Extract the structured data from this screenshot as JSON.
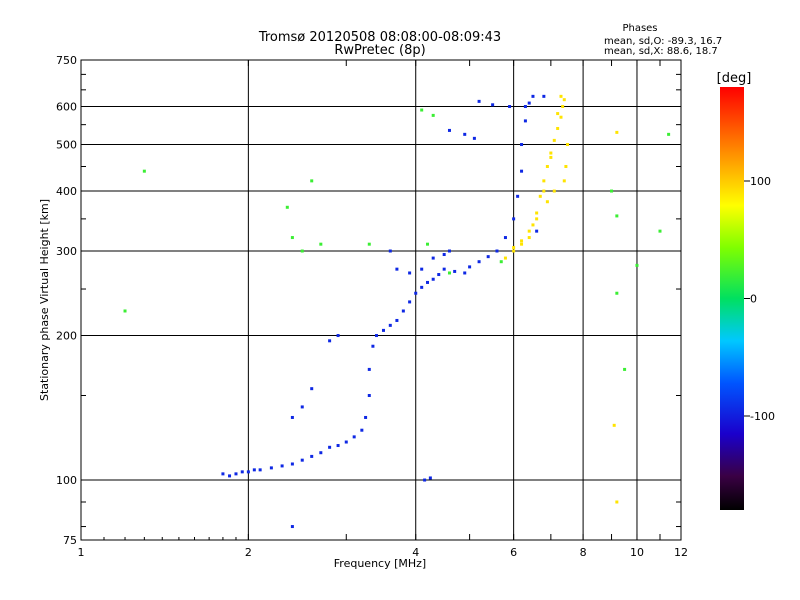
{
  "chart_data": {
    "type": "scatter",
    "title": "Tromsø 20120508 08:08:00-08:09:43",
    "subtitle": "RwPretec (8p)",
    "xlabel": "Frequency [MHz]",
    "ylabel": "Stationary phase Virtual Height [km]",
    "x_scale": "log",
    "y_scale": "log",
    "xlim": [
      1,
      12
    ],
    "ylim": [
      75,
      750
    ],
    "x_ticks": [
      "1",
      "2",
      "4",
      "6",
      "8",
      "10",
      "12"
    ],
    "y_ticks": [
      "75",
      "100",
      "200",
      "300",
      "400",
      "500",
      "600",
      "750"
    ],
    "grid": true,
    "stats": {
      "title": "Phases",
      "line_o": "mean, sd,O: -89.3, 16.7",
      "line_x": "mean, sd,X: 88.6, 18.7"
    },
    "colorbar": {
      "label": "[deg]",
      "range": [
        -180,
        180
      ],
      "ticks": [
        "100",
        "0",
        "-100"
      ]
    },
    "series": [
      {
        "trace": "O",
        "phase_deg": -95,
        "points": [
          [
            1.8,
            103
          ],
          [
            1.85,
            102
          ],
          [
            1.9,
            103
          ],
          [
            1.95,
            104
          ],
          [
            2.0,
            104
          ],
          [
            2.05,
            105
          ],
          [
            2.1,
            105
          ],
          [
            2.2,
            106
          ],
          [
            2.3,
            107
          ],
          [
            2.4,
            108
          ],
          [
            2.5,
            110
          ],
          [
            2.6,
            112
          ],
          [
            2.7,
            114
          ],
          [
            2.8,
            117
          ],
          [
            2.9,
            118
          ],
          [
            3.0,
            120
          ],
          [
            3.1,
            123
          ],
          [
            3.2,
            127
          ],
          [
            3.25,
            135
          ],
          [
            3.3,
            150
          ],
          [
            3.3,
            170
          ],
          [
            3.35,
            190
          ],
          [
            3.4,
            200
          ],
          [
            3.5,
            205
          ],
          [
            3.6,
            210
          ],
          [
            3.7,
            215
          ],
          [
            3.8,
            225
          ],
          [
            3.9,
            235
          ],
          [
            4.0,
            245
          ],
          [
            4.1,
            252
          ],
          [
            4.2,
            258
          ],
          [
            4.3,
            262
          ],
          [
            4.4,
            268
          ],
          [
            4.5,
            275
          ],
          [
            4.7,
            272
          ],
          [
            4.9,
            270
          ],
          [
            5.0,
            278
          ],
          [
            5.2,
            285
          ],
          [
            5.4,
            292
          ],
          [
            5.6,
            300
          ],
          [
            5.8,
            320
          ],
          [
            6.0,
            350
          ],
          [
            6.1,
            390
          ],
          [
            6.2,
            440
          ],
          [
            6.2,
            500
          ],
          [
            6.3,
            560
          ],
          [
            6.4,
            610
          ],
          [
            6.5,
            630
          ],
          [
            6.3,
            600
          ],
          [
            5.9,
            600
          ],
          [
            5.5,
            605
          ],
          [
            5.2,
            615
          ],
          [
            3.6,
            300
          ],
          [
            3.7,
            275
          ],
          [
            3.9,
            270
          ],
          [
            4.1,
            275
          ],
          [
            4.3,
            290
          ],
          [
            4.5,
            295
          ],
          [
            4.6,
            300
          ],
          [
            2.4,
            135
          ],
          [
            2.5,
            142
          ],
          [
            2.6,
            155
          ],
          [
            2.8,
            195
          ],
          [
            2.9,
            200
          ],
          [
            4.15,
            100
          ],
          [
            4.25,
            101
          ],
          [
            2.4,
            80
          ],
          [
            4.6,
            535
          ],
          [
            4.9,
            525
          ],
          [
            5.1,
            515
          ],
          [
            6.8,
            630
          ],
          [
            6.6,
            330
          ]
        ]
      },
      {
        "trace": "X",
        "phase_deg": 90,
        "points": [
          [
            5.8,
            290
          ],
          [
            6.0,
            300
          ],
          [
            6.2,
            310
          ],
          [
            6.4,
            320
          ],
          [
            6.5,
            340
          ],
          [
            6.6,
            360
          ],
          [
            6.7,
            390
          ],
          [
            6.8,
            420
          ],
          [
            6.9,
            450
          ],
          [
            7.0,
            480
          ],
          [
            7.1,
            510
          ],
          [
            7.2,
            540
          ],
          [
            7.3,
            570
          ],
          [
            7.35,
            600
          ],
          [
            7.4,
            620
          ],
          [
            7.3,
            630
          ],
          [
            7.2,
            580
          ],
          [
            7.0,
            470
          ],
          [
            6.8,
            400
          ],
          [
            6.6,
            350
          ],
          [
            6.4,
            330
          ],
          [
            6.2,
            315
          ],
          [
            6.0,
            305
          ],
          [
            7.5,
            500
          ],
          [
            7.45,
            450
          ],
          [
            7.4,
            420
          ],
          [
            7.1,
            400
          ],
          [
            6.9,
            380
          ],
          [
            9.2,
            90
          ],
          [
            9.1,
            130
          ],
          [
            9.2,
            530
          ]
        ]
      },
      {
        "trace": "scatter",
        "phase_deg": 20,
        "points": [
          [
            1.3,
            440
          ],
          [
            2.35,
            370
          ],
          [
            2.4,
            320
          ],
          [
            2.5,
            300
          ],
          [
            2.6,
            420
          ],
          [
            2.7,
            310
          ],
          [
            3.3,
            310
          ],
          [
            4.1,
            590
          ],
          [
            4.3,
            575
          ],
          [
            4.2,
            310
          ],
          [
            10.0,
            280
          ],
          [
            9.5,
            170
          ],
          [
            11.0,
            330
          ],
          [
            11.4,
            525
          ],
          [
            9.2,
            245
          ],
          [
            9.0,
            400
          ],
          [
            9.2,
            355
          ],
          [
            1.2,
            225
          ],
          [
            4.6,
            270
          ],
          [
            5.7,
            285
          ]
        ]
      }
    ]
  }
}
